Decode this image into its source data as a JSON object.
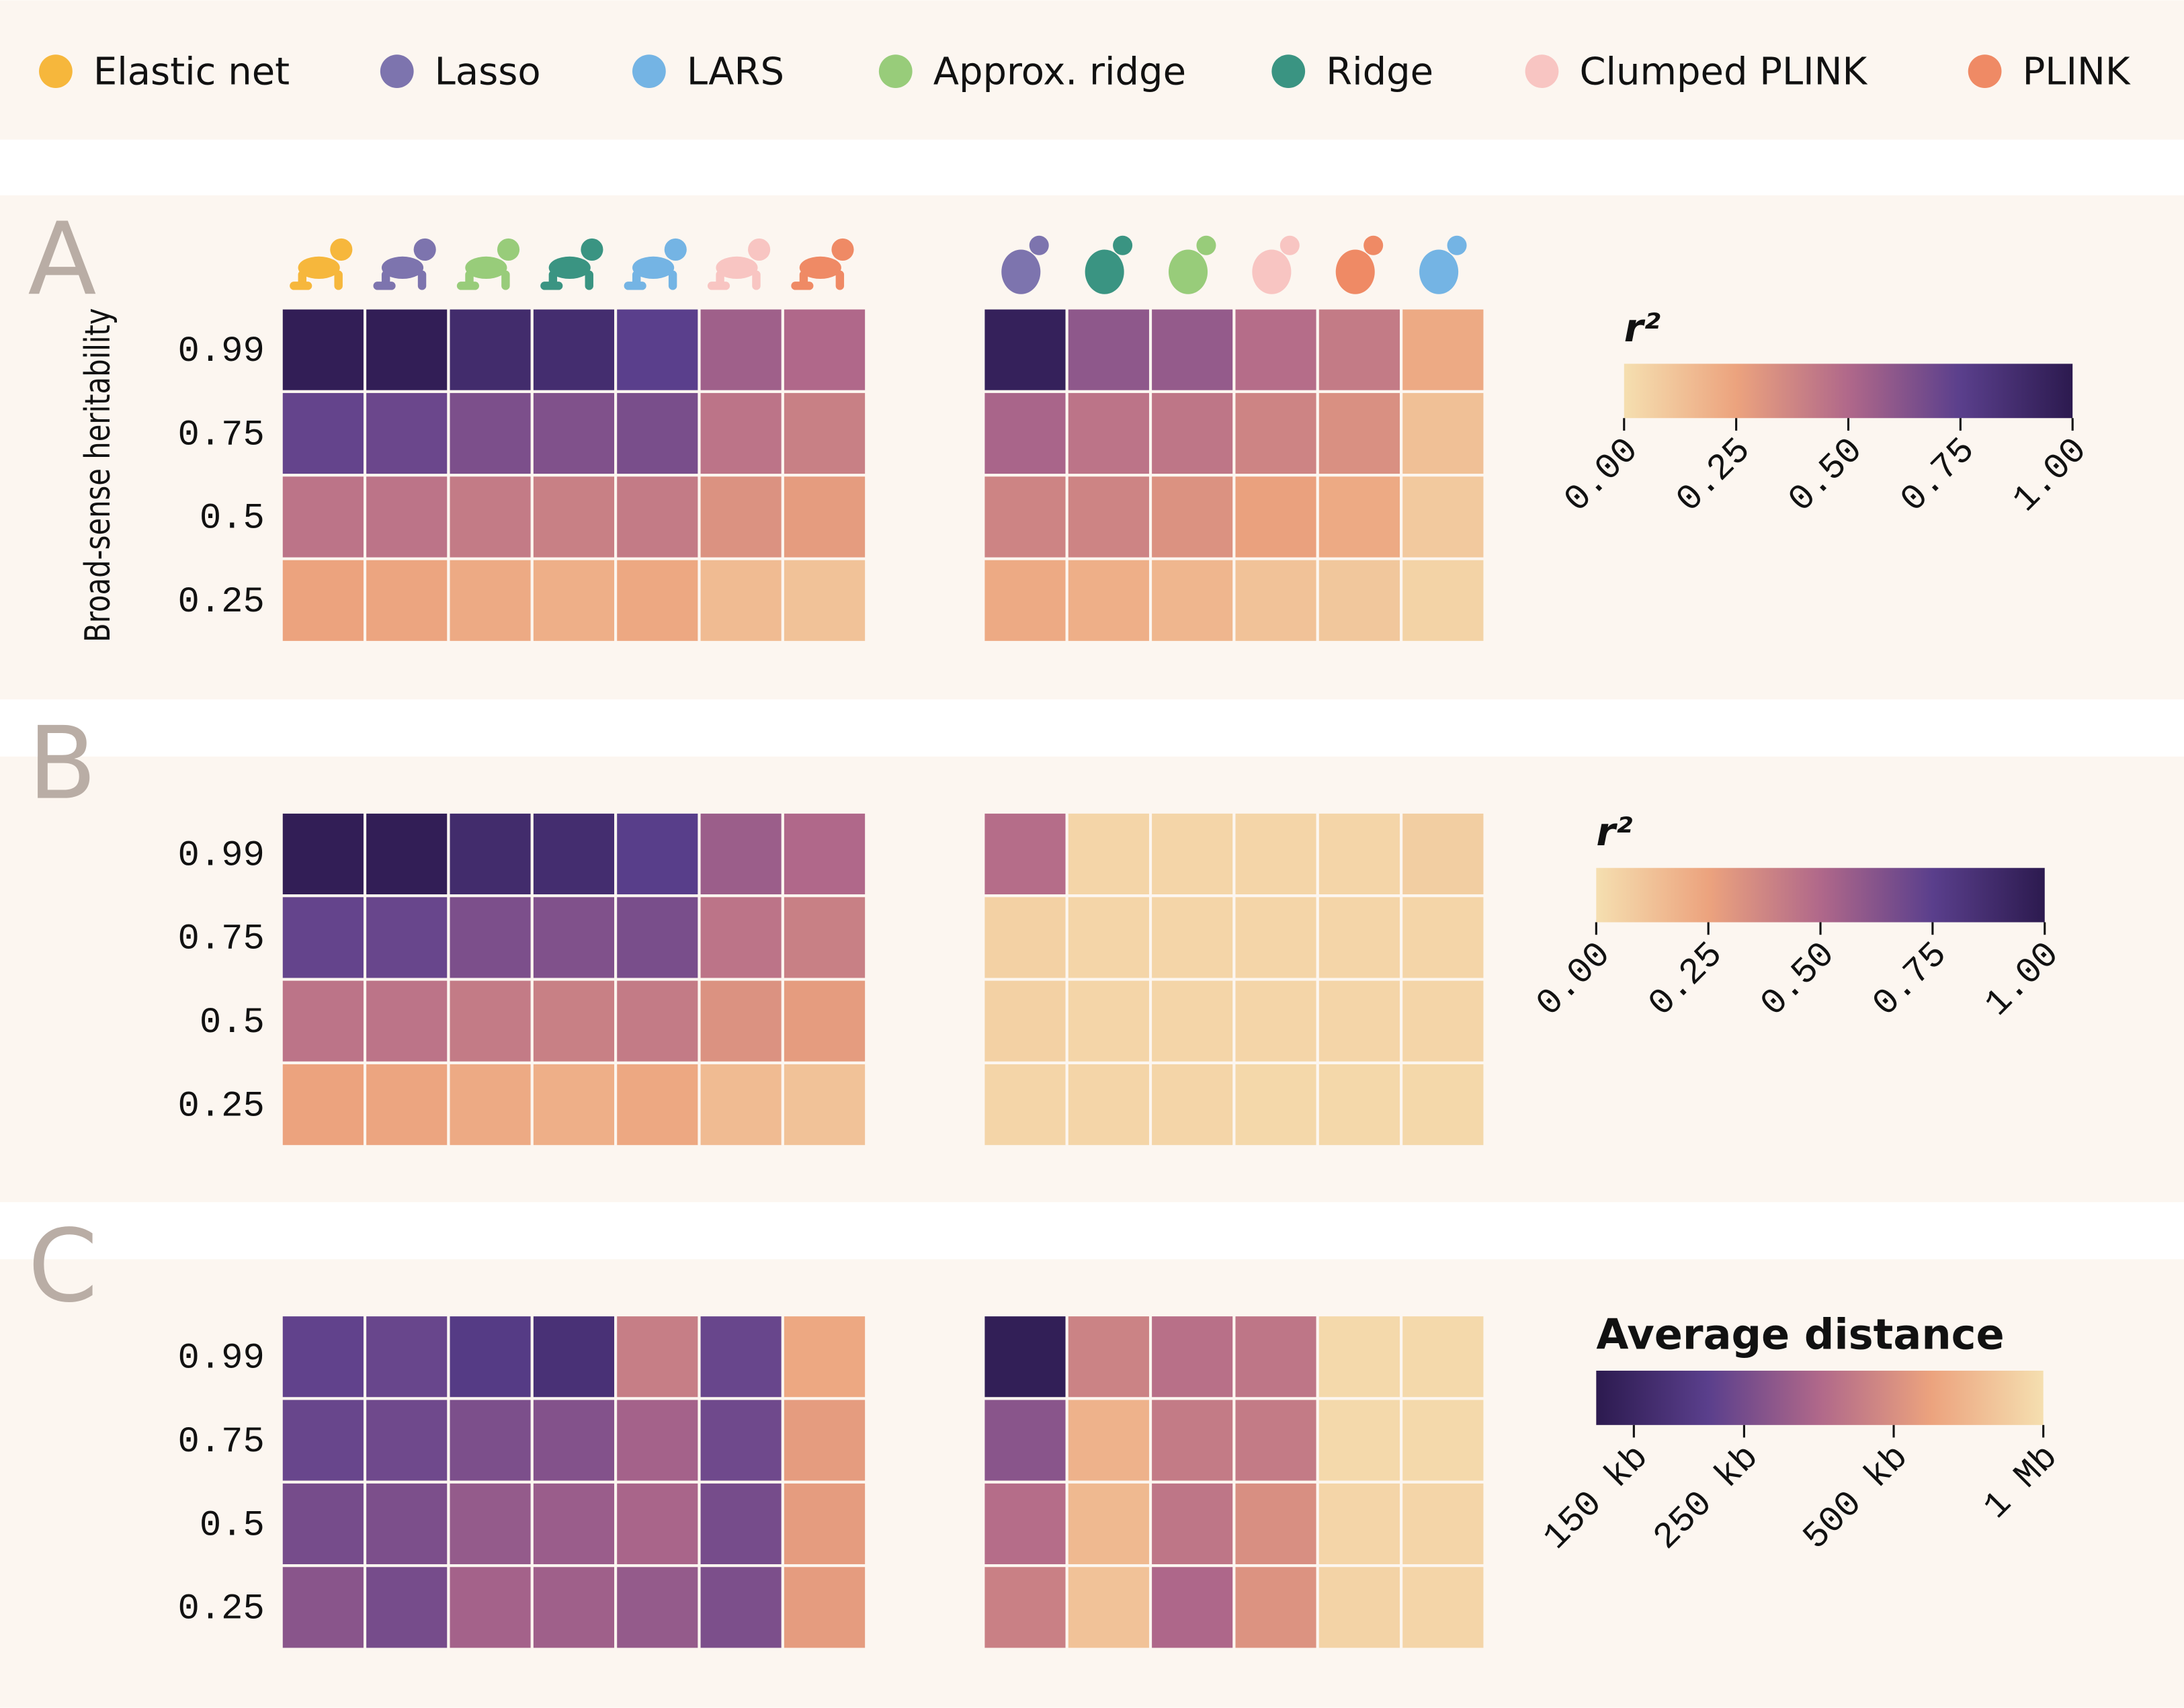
{
  "legend": [
    {
      "name": "Elastic net",
      "color": "#f6b73c"
    },
    {
      "name": "Lasso",
      "color": "#7d74ae"
    },
    {
      "name": "LARS",
      "color": "#74b4e4"
    },
    {
      "name": "Approx. ridge",
      "color": "#98cc7a"
    },
    {
      "name": "Ridge",
      "color": "#3a9482"
    },
    {
      "name": "Clumped PLINK",
      "color": "#f8c5c2"
    },
    {
      "name": "PLINK",
      "color": "#ef8a65"
    }
  ],
  "chart_data": [
    {
      "type": "heatmap",
      "panel": "A",
      "ylabel": "Broad-sense heritability",
      "rows": [
        0.99,
        0.75,
        0.5,
        0.25
      ],
      "blocks": [
        {
          "icon": "human",
          "column_colors": [
            "#f6b73c",
            "#7d74ae",
            "#98cc7a",
            "#3a9482",
            "#74b4e4",
            "#f8c5c2",
            "#ef8a65"
          ],
          "values": [
            [
              0.97,
              0.97,
              0.88,
              0.87,
              0.75,
              0.55,
              0.5
            ],
            [
              0.72,
              0.7,
              0.65,
              0.64,
              0.66,
              0.45,
              0.4
            ],
            [
              0.45,
              0.45,
              0.42,
              0.4,
              0.42,
              0.32,
              0.28
            ],
            [
              0.25,
              0.24,
              0.22,
              0.2,
              0.23,
              0.15,
              0.12
            ]
          ]
        },
        {
          "icon": "yeast",
          "column_colors": [
            "#7d74ae",
            "#3a9482",
            "#98cc7a",
            "#f8c5c2",
            "#ef8a65",
            "#74b4e4"
          ],
          "values": [
            [
              0.95,
              0.6,
              0.58,
              0.48,
              0.42,
              0.22
            ],
            [
              0.52,
              0.45,
              0.44,
              0.38,
              0.33,
              0.13
            ],
            [
              0.38,
              0.38,
              0.32,
              0.26,
              0.22,
              0.09
            ],
            [
              0.22,
              0.2,
              0.17,
              0.12,
              0.1,
              0.05
            ]
          ]
        }
      ],
      "colorbar": {
        "title": "r²",
        "lim": [
          0,
          1
        ],
        "log": false,
        "reverse": false,
        "colors": [
          "#f5dfb0",
          "#eca37e",
          "#b0688a",
          "#5a3f8c",
          "#2c1a4f"
        ],
        "ticks": [
          {
            "value": 0,
            "label": "0.00"
          },
          {
            "value": 0.25,
            "label": "0.25"
          },
          {
            "value": 0.5,
            "label": "0.50"
          },
          {
            "value": 0.75,
            "label": "0.75"
          },
          {
            "value": 1,
            "label": "1.00"
          }
        ]
      }
    },
    {
      "type": "heatmap",
      "panel": "B",
      "rows": [
        0.99,
        0.75,
        0.5,
        0.25
      ],
      "blocks": [
        {
          "values": [
            [
              0.97,
              0.97,
              0.88,
              0.87,
              0.76,
              0.56,
              0.5
            ],
            [
              0.72,
              0.71,
              0.65,
              0.64,
              0.66,
              0.45,
              0.4
            ],
            [
              0.45,
              0.45,
              0.42,
              0.4,
              0.42,
              0.32,
              0.28
            ],
            [
              0.25,
              0.24,
              0.22,
              0.2,
              0.23,
              0.15,
              0.12
            ]
          ]
        },
        {
          "values": [
            [
              0.48,
              0.04,
              0.04,
              0.04,
              0.04,
              0.07
            ],
            [
              0.06,
              0.04,
              0.04,
              0.04,
              0.04,
              0.04
            ],
            [
              0.06,
              0.04,
              0.04,
              0.04,
              0.04,
              0.04
            ],
            [
              0.04,
              0.04,
              0.04,
              0.03,
              0.03,
              0.03
            ]
          ]
        }
      ],
      "colorbar": {
        "title": "r²",
        "lim": [
          0,
          1
        ],
        "log": false,
        "reverse": false,
        "colors": [
          "#f5dfb0",
          "#eca37e",
          "#b0688a",
          "#5a3f8c",
          "#2c1a4f"
        ],
        "ticks": [
          {
            "value": 0,
            "label": "0.00"
          },
          {
            "value": 0.25,
            "label": "0.25"
          },
          {
            "value": 0.5,
            "label": "0.50"
          },
          {
            "value": 0.75,
            "label": "0.75"
          },
          {
            "value": 1,
            "label": "1.00"
          }
        ]
      }
    },
    {
      "type": "heatmap",
      "panel": "C",
      "rows": [
        0.99,
        0.75,
        0.5,
        0.25
      ],
      "blocks": [
        {
          "values": [
            [
              220000,
              230000,
              200000,
              175000,
              430000,
              230000,
              620000
            ],
            [
              230000,
              240000,
              260000,
              270000,
              330000,
              240000,
              560000
            ],
            [
              250000,
              260000,
              300000,
              310000,
              340000,
              250000,
              560000
            ],
            [
              280000,
              250000,
              330000,
              320000,
              300000,
              260000,
              560000
            ]
          ]
        },
        {
          "values": [
            [
              135000,
              450000,
              380000,
              400000,
              950000,
              950000
            ],
            [
              280000,
              680000,
              420000,
              420000,
              950000,
              950000
            ],
            [
              370000,
              720000,
              400000,
              500000,
              920000,
              920000
            ],
            [
              440000,
              780000,
              350000,
              520000,
              900000,
              920000
            ]
          ]
        }
      ],
      "colorbar": {
        "title": "Average distance",
        "lim": [
          126000,
          1000000
        ],
        "log": true,
        "reverse": true,
        "colors": [
          "#f5dfb0",
          "#eca37e",
          "#b0688a",
          "#5a3f8c",
          "#2c1a4f"
        ],
        "ticks": [
          {
            "value": 150000,
            "label": "150 kb"
          },
          {
            "value": 250000,
            "label": "250 kb"
          },
          {
            "value": 500000,
            "label": "500 kb"
          },
          {
            "value": 1000000,
            "label": "1 Mb"
          }
        ]
      }
    }
  ]
}
